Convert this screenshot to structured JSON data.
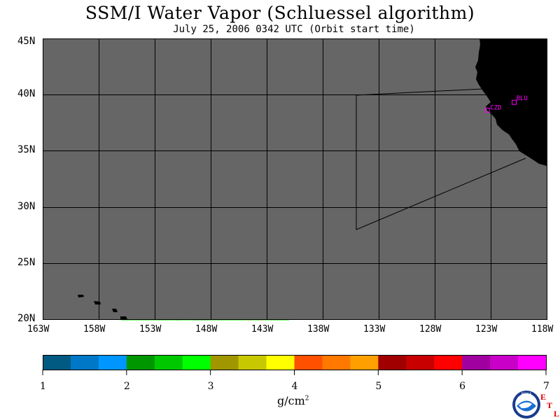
{
  "title": "SSM/I Water Vapor (Schluessel algorithm)",
  "subtitle": "July 25, 2006  0342 UTC  (Orbit start time)",
  "map": {
    "lat_labels": [
      "45N",
      "40N",
      "35N",
      "30N",
      "25N",
      "20N"
    ],
    "lon_labels": [
      "163W",
      "158W",
      "153W",
      "148W",
      "143W",
      "138W",
      "133W",
      "128W",
      "123W",
      "118W"
    ],
    "stations": [
      {
        "label": "CZD",
        "lon": -123.3,
        "lat": 38.6
      },
      {
        "label": "BLU",
        "lon": -120.9,
        "lat": 39.3
      }
    ],
    "colors": {
      "ocean_nodata": "#666666",
      "land": "#000000",
      "grid": "#000000",
      "station": "#ff00ff"
    }
  },
  "colorbar": {
    "ticks": [
      "1",
      "2",
      "3",
      "4",
      "5",
      "6",
      "7"
    ],
    "unit_label": "g/cm",
    "unit_sup": "2",
    "colors": [
      "#005a82",
      "#0078c8",
      "#0096ff",
      "#009600",
      "#00c800",
      "#00ff00",
      "#a09600",
      "#c8c800",
      "#ffff00",
      "#ff5000",
      "#ff7800",
      "#ffa000",
      "#a00000",
      "#c80000",
      "#ff0000",
      "#a000a0",
      "#c800c8",
      "#ff00ff"
    ]
  },
  "logo": {
    "text": "NOAA",
    "etl_letters": [
      "E",
      "T",
      "L"
    ]
  }
}
